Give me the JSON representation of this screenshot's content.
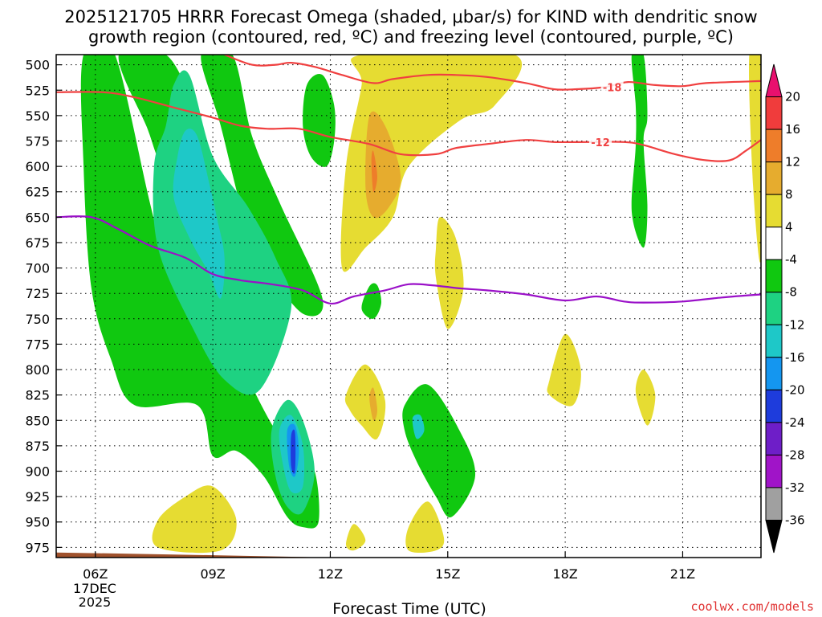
{
  "chart_data": {
    "type": "heatmap",
    "title_lines": [
      "2025121705 HRRR Forecast Omega (shaded, μbar/s) for KIND with dendritic snow",
      "growth region (contoured, red, ºC) and freezing level (contoured, purple, ºC)"
    ],
    "xlabel": "Forecast Time (UTC)",
    "date_label_lines": [
      "17DEC",
      "2025"
    ],
    "credit": "coolwx.com/models",
    "x_ticks": [
      {
        "hour": 6,
        "label": "06Z"
      },
      {
        "hour": 9,
        "label": "09Z"
      },
      {
        "hour": 12,
        "label": "12Z"
      },
      {
        "hour": 15,
        "label": "15Z"
      },
      {
        "hour": 18,
        "label": "18Z"
      },
      {
        "hour": 21,
        "label": "21Z"
      }
    ],
    "xlim_hours": [
      5,
      23
    ],
    "y_ticks_mb": [
      500,
      525,
      550,
      575,
      600,
      625,
      650,
      675,
      700,
      725,
      750,
      775,
      800,
      825,
      850,
      875,
      900,
      925,
      950,
      975
    ],
    "ylim_mb": [
      490,
      985
    ],
    "colorbar": {
      "label_values": [
        20,
        16,
        12,
        8,
        4,
        -4,
        -8,
        -12,
        -16,
        -20,
        -24,
        -28,
        -32,
        -36
      ],
      "bins": [
        {
          "from": 20,
          "to": 24,
          "color": "#e8106e"
        },
        {
          "from": 16,
          "to": 20,
          "color": "#f03c3c"
        },
        {
          "from": 12,
          "to": 16,
          "color": "#ee7d2a"
        },
        {
          "from": 8,
          "to": 12,
          "color": "#e6ac2e"
        },
        {
          "from": 4,
          "to": 8,
          "color": "#e6dc32"
        },
        {
          "from": -4,
          "to": 4,
          "color": "#ffffff"
        },
        {
          "from": -8,
          "to": -4,
          "color": "#10c810"
        },
        {
          "from": -12,
          "to": -8,
          "color": "#1ed282"
        },
        {
          "from": -16,
          "to": -12,
          "color": "#1ec8c8"
        },
        {
          "from": -20,
          "to": -16,
          "color": "#1496f0"
        },
        {
          "from": -24,
          "to": -20,
          "color": "#1e3cdc"
        },
        {
          "from": -28,
          "to": -24,
          "color": "#6e1ec8"
        },
        {
          "from": -32,
          "to": -28,
          "color": "#a014c8"
        },
        {
          "from": -36,
          "to": -32,
          "color": "#a0a0a0"
        },
        {
          "from": -40,
          "to": -36,
          "color": "#000000"
        }
      ]
    },
    "omega_regions": [
      {
        "color": "#10c810",
        "points": [
          [
            5.7,
            490
          ],
          [
            6.5,
            490
          ],
          [
            7.8,
            690
          ],
          [
            9.2,
            740
          ],
          [
            9.8,
            800
          ],
          [
            10.6,
            860
          ],
          [
            11.1,
            880
          ],
          [
            11.6,
            900
          ],
          [
            11.7,
            950
          ],
          [
            11.3,
            955
          ],
          [
            10.9,
            945
          ],
          [
            10.3,
            905
          ],
          [
            9.6,
            880
          ],
          [
            9.0,
            885
          ],
          [
            8.6,
            835
          ],
          [
            7.0,
            835
          ],
          [
            6.4,
            790
          ],
          [
            5.9,
            720
          ],
          [
            5.7,
            600
          ]
        ]
      },
      {
        "color": "#10c810",
        "points": [
          [
            6.6,
            490
          ],
          [
            7.8,
            490
          ],
          [
            8.5,
            540
          ],
          [
            8.6,
            560
          ],
          [
            7.8,
            600
          ],
          [
            7.3,
            560
          ]
        ]
      },
      {
        "color": "#10c810",
        "points": [
          [
            8.7,
            490
          ],
          [
            9.5,
            490
          ],
          [
            10.0,
            570
          ],
          [
            10.7,
            635
          ],
          [
            11.8,
            730
          ],
          [
            11.3,
            745
          ],
          [
            10.4,
            700
          ],
          [
            9.8,
            650
          ],
          [
            9.2,
            560
          ]
        ]
      },
      {
        "color": "#1ed282",
        "points": [
          [
            8.0,
            520
          ],
          [
            8.4,
            510
          ],
          [
            9.0,
            590
          ],
          [
            9.9,
            640
          ],
          [
            10.6,
            690
          ],
          [
            11.0,
            740
          ],
          [
            10.2,
            820
          ],
          [
            9.3,
            810
          ],
          [
            8.5,
            760
          ],
          [
            7.6,
            680
          ],
          [
            7.5,
            600
          ],
          [
            7.8,
            560
          ]
        ]
      },
      {
        "color": "#1ed282",
        "points": [
          [
            10.5,
            860
          ],
          [
            10.9,
            830
          ],
          [
            11.3,
            850
          ],
          [
            11.6,
            900
          ],
          [
            11.3,
            940
          ],
          [
            10.9,
            935
          ],
          [
            10.6,
            905
          ]
        ]
      },
      {
        "color": "#1ec8c8",
        "points": [
          [
            8.3,
            565
          ],
          [
            8.6,
            570
          ],
          [
            8.9,
            615
          ],
          [
            9.1,
            650
          ],
          [
            9.3,
            690
          ],
          [
            9.2,
            730
          ],
          [
            8.9,
            705
          ],
          [
            8.4,
            670
          ],
          [
            8.0,
            630
          ],
          [
            8.1,
            590
          ]
        ]
      },
      {
        "color": "#1ec8c8",
        "points": [
          [
            10.7,
            860
          ],
          [
            11.0,
            845
          ],
          [
            11.3,
            875
          ],
          [
            11.3,
            915
          ],
          [
            11.0,
            920
          ],
          [
            10.8,
            895
          ]
        ]
      },
      {
        "color": "#1496f0",
        "points": [
          [
            10.9,
            860
          ],
          [
            11.1,
            855
          ],
          [
            11.2,
            880
          ],
          [
            11.1,
            905
          ],
          [
            10.95,
            895
          ]
        ]
      },
      {
        "color": "#1e3cdc",
        "points": [
          [
            11.0,
            865
          ],
          [
            11.1,
            862
          ],
          [
            11.1,
            900
          ],
          [
            11.0,
            895
          ]
        ]
      },
      {
        "color": "#10c810",
        "points": [
          [
            11.4,
            520
          ],
          [
            11.8,
            510
          ],
          [
            12.1,
            540
          ],
          [
            12.1,
            575
          ],
          [
            11.9,
            600
          ],
          [
            11.5,
            590
          ],
          [
            11.3,
            560
          ]
        ]
      },
      {
        "color": "#10c810",
        "points": [
          [
            13.0,
            718
          ],
          [
            13.2,
            717
          ],
          [
            13.3,
            735
          ],
          [
            13.1,
            750
          ],
          [
            12.8,
            740
          ]
        ]
      },
      {
        "color": "#10c810",
        "points": [
          [
            13.9,
            835
          ],
          [
            14.5,
            815
          ],
          [
            15.3,
            860
          ],
          [
            15.7,
            905
          ],
          [
            15.1,
            945
          ],
          [
            14.7,
            925
          ],
          [
            14.2,
            890
          ],
          [
            13.9,
            860
          ]
        ]
      },
      {
        "color": "#1ec8c8",
        "points": [
          [
            14.1,
            848
          ],
          [
            14.3,
            845
          ],
          [
            14.4,
            860
          ],
          [
            14.2,
            868
          ]
        ]
      },
      {
        "color": "#10c810",
        "points": [
          [
            19.7,
            490
          ],
          [
            20.0,
            490
          ],
          [
            20.1,
            550
          ],
          [
            20.0,
            575
          ],
          [
            20.1,
            640
          ],
          [
            20.0,
            680
          ],
          [
            19.7,
            645
          ],
          [
            19.8,
            580
          ],
          [
            19.8,
            540
          ]
        ]
      },
      {
        "color": "#e6dc32",
        "points": [
          [
            12.8,
            490
          ],
          [
            16.7,
            490
          ],
          [
            16.2,
            540
          ],
          [
            15.3,
            555
          ],
          [
            14.0,
            600
          ],
          [
            13.6,
            650
          ],
          [
            12.9,
            680
          ],
          [
            12.3,
            700
          ],
          [
            12.4,
            600
          ],
          [
            12.8,
            520
          ]
        ]
      },
      {
        "color": "#e6dc32",
        "points": [
          [
            14.8,
            650
          ],
          [
            15.2,
            670
          ],
          [
            15.4,
            720
          ],
          [
            15.0,
            760
          ],
          [
            14.7,
            710
          ],
          [
            14.7,
            680
          ]
        ]
      },
      {
        "color": "#e6dc32",
        "points": [
          [
            12.4,
            825
          ],
          [
            12.9,
            795
          ],
          [
            13.4,
            830
          ],
          [
            13.2,
            868
          ],
          [
            12.8,
            855
          ],
          [
            12.5,
            840
          ]
        ]
      },
      {
        "color": "#e6dc32",
        "points": [
          [
            7.6,
            948
          ],
          [
            8.3,
            925
          ],
          [
            9.0,
            915
          ],
          [
            9.6,
            948
          ],
          [
            9.2,
            978
          ],
          [
            7.6,
            975
          ]
        ]
      },
      {
        "color": "#e6dc32",
        "points": [
          [
            12.4,
            972
          ],
          [
            12.6,
            952
          ],
          [
            12.9,
            968
          ],
          [
            12.6,
            978
          ]
        ]
      },
      {
        "color": "#e6dc32",
        "points": [
          [
            14.0,
            955
          ],
          [
            14.5,
            930
          ],
          [
            14.9,
            965
          ],
          [
            14.7,
            978
          ],
          [
            14.0,
            978
          ]
        ]
      },
      {
        "color": "#e6dc32",
        "points": [
          [
            17.6,
            810
          ],
          [
            18.0,
            765
          ],
          [
            18.4,
            800
          ],
          [
            18.2,
            835
          ],
          [
            17.6,
            825
          ]
        ]
      },
      {
        "color": "#e6dc32",
        "points": [
          [
            19.8,
            822
          ],
          [
            20.0,
            800
          ],
          [
            20.3,
            825
          ],
          [
            20.1,
            855
          ]
        ]
      },
      {
        "color": "#e6dc32",
        "points": [
          [
            22.7,
            490
          ],
          [
            23.0,
            490
          ],
          [
            23.0,
            690
          ],
          [
            22.8,
            620
          ]
        ]
      },
      {
        "color": "#e6ac2e",
        "points": [
          [
            13.0,
            550
          ],
          [
            13.4,
            560
          ],
          [
            13.8,
            610
          ],
          [
            13.5,
            640
          ],
          [
            13.1,
            650
          ],
          [
            12.9,
            620
          ]
        ]
      },
      {
        "color": "#e6ac2e",
        "points": [
          [
            13.0,
            828
          ],
          [
            13.1,
            818
          ],
          [
            13.2,
            840
          ],
          [
            13.1,
            850
          ]
        ]
      },
      {
        "color": "#ee7d2a",
        "points": [
          [
            13.05,
            595
          ],
          [
            13.1,
            585
          ],
          [
            13.2,
            610
          ],
          [
            13.1,
            625
          ]
        ]
      }
    ],
    "contours": [
      {
        "name": "-18 isotherm",
        "label": "-18",
        "color": "#f04040",
        "label_hour": 19.2,
        "points": [
          [
            9.3,
            490
          ],
          [
            10.0,
            500
          ],
          [
            10.6,
            500
          ],
          [
            11.0,
            498
          ],
          [
            11.6,
            502
          ],
          [
            12.3,
            510
          ],
          [
            13.1,
            518
          ],
          [
            13.6,
            514
          ],
          [
            14.5,
            510
          ],
          [
            15.2,
            510
          ],
          [
            16.0,
            512
          ],
          [
            17.0,
            518
          ],
          [
            17.7,
            524
          ],
          [
            18.3,
            524
          ],
          [
            19.0,
            522
          ],
          [
            19.6,
            517
          ],
          [
            20.3,
            520
          ],
          [
            21.0,
            521
          ],
          [
            21.6,
            518
          ],
          [
            23.0,
            516
          ]
        ]
      },
      {
        "name": "-12 isotherm",
        "label": "-12",
        "color": "#f04040",
        "label_hour": 18.9,
        "points": [
          [
            5.0,
            527
          ],
          [
            6.2,
            527
          ],
          [
            7.0,
            532
          ],
          [
            8.0,
            542
          ],
          [
            9.0,
            552
          ],
          [
            9.7,
            560
          ],
          [
            10.4,
            563
          ],
          [
            11.2,
            563
          ],
          [
            12.0,
            571
          ],
          [
            13.0,
            578
          ],
          [
            13.8,
            588
          ],
          [
            14.7,
            588
          ],
          [
            15.2,
            582
          ],
          [
            16.0,
            578
          ],
          [
            17.0,
            574
          ],
          [
            17.7,
            576
          ],
          [
            18.6,
            576
          ],
          [
            19.5,
            576
          ],
          [
            20.0,
            579
          ],
          [
            20.8,
            588
          ],
          [
            21.6,
            594
          ],
          [
            22.2,
            594
          ],
          [
            22.6,
            585
          ],
          [
            23.0,
            574
          ]
        ]
      },
      {
        "name": "0C freezing level",
        "label": "",
        "color": "#9a10c8",
        "label_hour": null,
        "points": [
          [
            5.0,
            650
          ],
          [
            5.9,
            650
          ],
          [
            6.6,
            662
          ],
          [
            7.4,
            678
          ],
          [
            8.3,
            690
          ],
          [
            9.0,
            706
          ],
          [
            9.7,
            712
          ],
          [
            10.5,
            716
          ],
          [
            11.3,
            722
          ],
          [
            12.0,
            735
          ],
          [
            12.6,
            728
          ],
          [
            13.4,
            722
          ],
          [
            14.0,
            716
          ],
          [
            14.6,
            717
          ],
          [
            15.3,
            720
          ],
          [
            16.0,
            722
          ],
          [
            17.0,
            726
          ],
          [
            18.0,
            732
          ],
          [
            18.8,
            728
          ],
          [
            19.5,
            733
          ],
          [
            20.0,
            734
          ],
          [
            21.0,
            733
          ],
          [
            22.0,
            729
          ],
          [
            23.0,
            726
          ]
        ]
      }
    ],
    "ground_level_mb": [
      [
        5.0,
        980
      ],
      [
        8.0,
        982
      ],
      [
        12.0,
        985
      ],
      [
        16.0,
        985
      ],
      [
        23.0,
        985
      ]
    ]
  }
}
